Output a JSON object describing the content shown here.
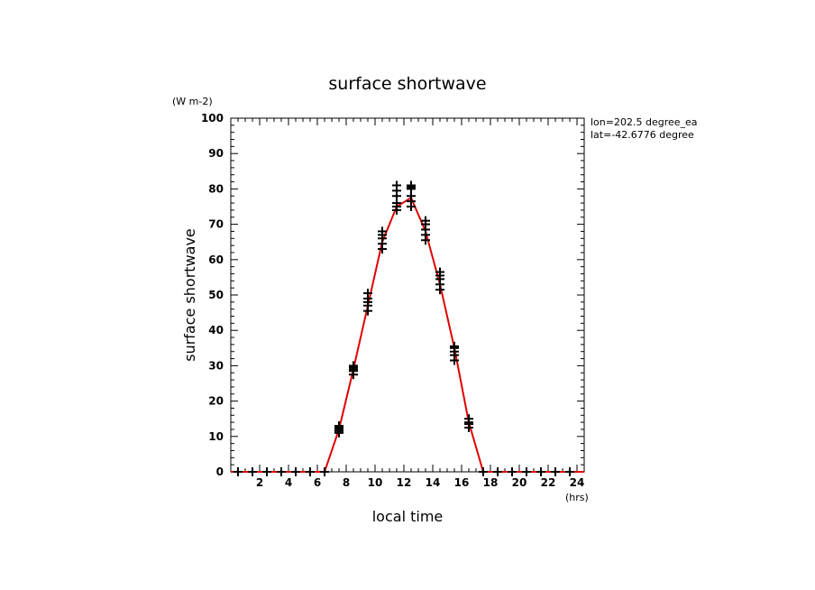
{
  "chart_data": {
    "type": "line",
    "title": "surface shortwave",
    "xlabel": "local time",
    "ylabel": "surface shortwave",
    "x_unit": "(hrs)",
    "y_unit": "(W m-2)",
    "annotations": [
      "lon=202.5 degree_ea",
      "lat=-42.6776 degree"
    ],
    "xlim": [
      0,
      24.5
    ],
    "ylim": [
      0,
      100
    ],
    "x_ticks": [
      2,
      4,
      6,
      8,
      10,
      12,
      14,
      16,
      18,
      20,
      22,
      24
    ],
    "y_ticks": [
      0,
      10,
      20,
      30,
      40,
      50,
      60,
      70,
      80,
      90,
      100
    ],
    "grid": false,
    "series": [
      {
        "color": "#e00000",
        "style": "line",
        "x": [
          0,
          6.5,
          7.5,
          8.5,
          9.5,
          10.5,
          11.5,
          12.5,
          13.5,
          14.5,
          15.5,
          16.5,
          17.5,
          24.5
        ],
        "y": [
          0,
          0,
          12,
          29,
          47,
          65,
          75,
          77.5,
          68,
          53,
          35,
          14,
          0,
          0
        ]
      },
      {
        "color": "#000000",
        "style": "markers",
        "marker": "+",
        "x": [
          0.5,
          1.5,
          2.5,
          3.5,
          4.5,
          5.5,
          6.5,
          7.5,
          7.5,
          7.5,
          7.5,
          7.5,
          8.5,
          8.5,
          8.5,
          8.5,
          8.5,
          9.5,
          9.5,
          9.5,
          9.5,
          9.5,
          10.5,
          10.5,
          10.5,
          10.5,
          10.5,
          11.5,
          11.5,
          11.5,
          11.5,
          11.5,
          11.5,
          12.5,
          12.5,
          12.5,
          12.5,
          12.5,
          12.5,
          13.5,
          13.5,
          13.5,
          13.5,
          13.5,
          14.5,
          14.5,
          14.5,
          14.5,
          14.5,
          15.5,
          15.5,
          15.5,
          15.5,
          15.5,
          16.5,
          16.5,
          16.5,
          16.5,
          17.5,
          18.5,
          19.5,
          20.5,
          21.5,
          22.5,
          23.5
        ],
        "y": [
          0,
          0,
          0,
          0,
          0,
          0,
          0,
          11,
          12,
          12.5,
          13,
          11.5,
          27.5,
          28.5,
          29,
          29.5,
          30,
          45.5,
          47,
          48,
          49,
          50.5,
          63,
          64.5,
          66,
          67,
          68,
          74,
          75,
          76,
          78,
          79.5,
          81,
          75,
          76.5,
          78,
          80,
          81,
          80.5,
          65.5,
          67,
          68.5,
          70,
          71,
          51.5,
          53,
          54.5,
          55.5,
          56.5,
          31.5,
          33,
          34,
          35,
          35.5,
          12.5,
          13.5,
          14,
          15,
          0,
          0,
          0,
          0,
          0,
          0,
          0
        ]
      }
    ]
  }
}
